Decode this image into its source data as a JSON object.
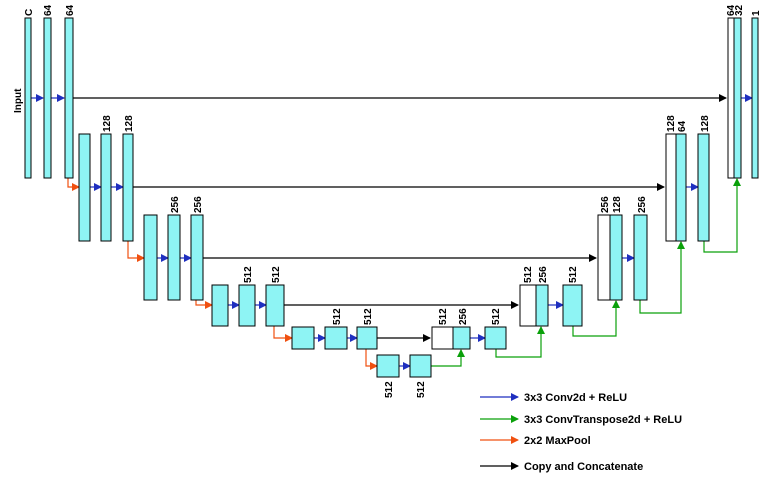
{
  "input_label": "Input",
  "channel_labels": {
    "in_c": "C",
    "e1a": "64",
    "e1b": "64",
    "e2a": "128",
    "e2b": "128",
    "e3a": "256",
    "e3b": "256",
    "e4a": "512",
    "e4b": "512",
    "e5a": "512",
    "e5b": "512",
    "bt1": "512",
    "bt2": "512",
    "d4_copy": "512",
    "d4_up": "256",
    "d4_conv": "512",
    "d3_copy": "512",
    "d3_up": "256",
    "d3_conv": "512",
    "d2_copy": "256",
    "d2_up": "128",
    "d2_conv": "256",
    "d1_copy": "128",
    "d1_up": "64",
    "d1_conv": "128",
    "out_copy": "64",
    "out_up": "32",
    "out_final": "1"
  },
  "legend": [
    {
      "label": "3x3 Conv2d + ReLU",
      "color": "#1f2fbf"
    },
    {
      "label": "3x3 ConvTranspose2d + ReLU",
      "color": "#0aa00a"
    },
    {
      "label": "2x2 MaxPool",
      "color": "#f05010"
    },
    {
      "label": "Copy and Concatenate",
      "color": "#000000"
    }
  ],
  "colors": {
    "block_fill": "#8ef4f4",
    "conv": "#1f2fbf",
    "convtranspose": "#0aa00a",
    "maxpool": "#f05010",
    "copy": "#000000"
  }
}
